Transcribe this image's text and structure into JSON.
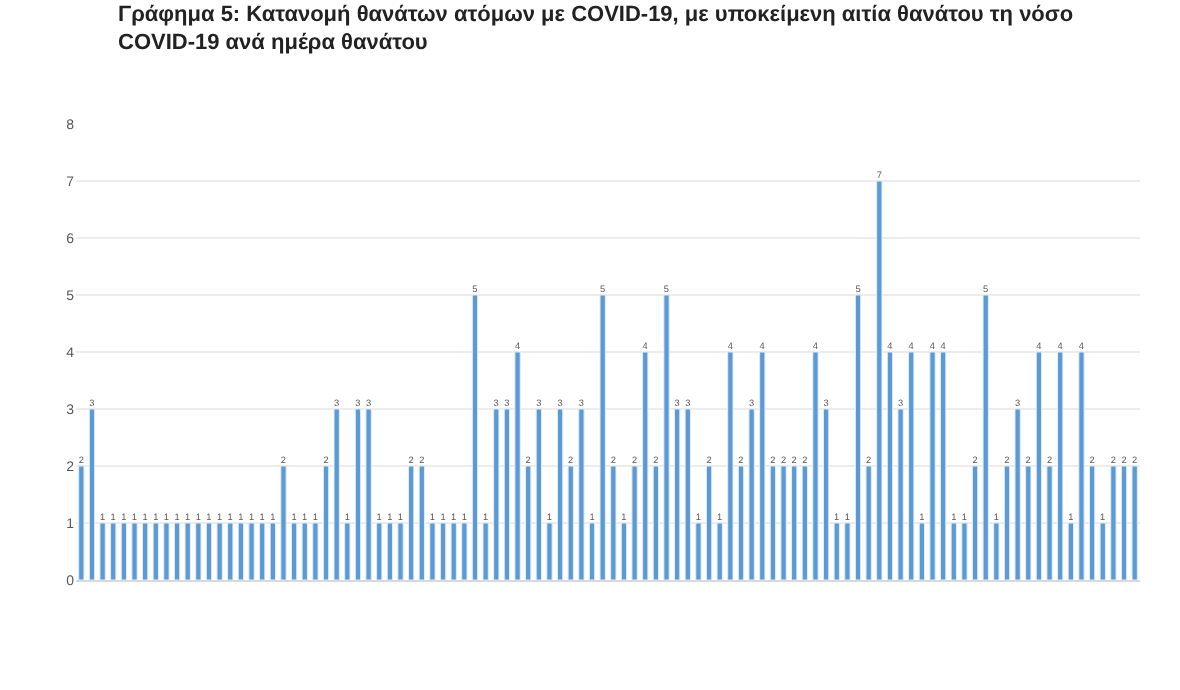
{
  "chart_data": {
    "type": "bar",
    "title": "Γράφημα 5: Κατανομή θανάτων ατόμων με COVID-19, με υποκείμενη αιτία θανάτου τη νόσο\nCOVID-19 ανά ημέρα θανάτου",
    "categories": [
      null,
      null,
      null,
      null,
      null,
      null,
      null,
      null,
      null,
      null,
      null,
      null,
      null,
      null,
      null,
      null,
      null,
      null,
      null,
      null,
      null,
      null,
      null,
      null,
      null,
      null,
      null,
      null,
      null,
      null,
      null,
      null,
      null,
      null,
      null,
      null,
      null,
      null,
      null,
      null,
      null,
      null,
      null,
      null,
      null,
      null,
      null,
      null,
      null,
      null,
      null,
      null,
      null,
      null,
      null,
      null,
      null,
      null,
      null,
      null,
      null,
      null,
      null,
      null,
      null,
      null,
      null,
      null,
      null,
      null,
      null,
      null,
      null,
      null,
      null,
      null,
      null,
      null,
      null,
      null,
      null,
      null,
      null,
      null,
      null,
      null,
      null,
      null,
      null,
      null,
      null,
      null,
      null,
      null,
      null,
      null,
      null,
      null,
      null,
      null
    ],
    "values": [
      2,
      3,
      1,
      1,
      1,
      1,
      1,
      1,
      1,
      1,
      1,
      1,
      1,
      1,
      1,
      1,
      1,
      1,
      1,
      2,
      1,
      1,
      1,
      2,
      3,
      1,
      3,
      3,
      1,
      1,
      1,
      2,
      2,
      1,
      1,
      1,
      1,
      5,
      1,
      3,
      3,
      4,
      2,
      3,
      1,
      3,
      2,
      3,
      1,
      5,
      2,
      1,
      2,
      4,
      2,
      5,
      3,
      3,
      1,
      2,
      1,
      4,
      2,
      3,
      4,
      2,
      2,
      2,
      2,
      4,
      3,
      1,
      1,
      5,
      2,
      7,
      4,
      3,
      4,
      1,
      4,
      4,
      1,
      1,
      2,
      5,
      1,
      2,
      3,
      2,
      4,
      2,
      4,
      1,
      4,
      2,
      1,
      2,
      2,
      2
    ],
    "color": "#5b9bd5",
    "data_labels": true,
    "ylim": [
      0,
      8
    ],
    "yticks": [
      0,
      1,
      2,
      3,
      4,
      5,
      6,
      7,
      8
    ],
    "grid": "y",
    "tick_labels": "y"
  }
}
